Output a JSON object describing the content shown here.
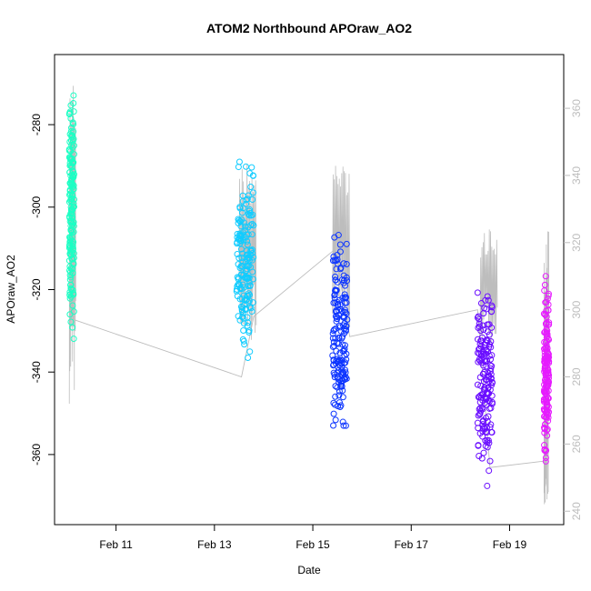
{
  "chart_data": {
    "type": "scatter",
    "title": "ATOM2 Northbound APOraw_AO2",
    "xlabel": "Date",
    "ylabel": "APOraw_AO2",
    "x_ticks": [
      {
        "x": 11,
        "label": "Feb 11"
      },
      {
        "x": 13,
        "label": "Feb 13"
      },
      {
        "x": 15,
        "label": "Feb 15"
      },
      {
        "x": 17,
        "label": "Feb 17"
      },
      {
        "x": 19,
        "label": "Feb 19"
      }
    ],
    "xlim": [
      9.75,
      20.1
    ],
    "ylim": [
      -377,
      -263
    ],
    "y_ticks": [
      -280,
      -300,
      -320,
      -340,
      -360
    ],
    "y2lim": [
      236,
      376
    ],
    "y2_ticks": [
      240,
      260,
      280,
      300,
      320,
      340,
      360
    ],
    "grid": false,
    "colors": {
      "points_gradient": [
        "#1bffc4",
        "#0cc6ff",
        "#0a3bff",
        "#6e0dff",
        "#e81bff"
      ],
      "secondary_line": "#bdbdbd",
      "secondary_axis": "#bdbdbd"
    },
    "clusters": [
      {
        "x_start": 10.05,
        "x_end": 10.15,
        "y_min": -338,
        "y_max": -266,
        "color": "#1bffc4"
      },
      {
        "x_start": 13.45,
        "x_end": 13.8,
        "y_min": -341,
        "y_max": -286,
        "color": "#11ccff"
      },
      {
        "x_start": 15.4,
        "x_end": 15.7,
        "y_min": -364,
        "y_max": -300,
        "color": "#0d35ff"
      },
      {
        "x_start": 18.35,
        "x_end": 18.65,
        "y_min": -372,
        "y_max": -311,
        "color": "#6a0dff"
      },
      {
        "x_start": 19.7,
        "x_end": 19.8,
        "y_min": -368,
        "y_max": -313,
        "color": "#e61bff"
      }
    ],
    "secondary_series": {
      "axis": "right",
      "bridge_points": [
        {
          "x": 10.15,
          "y": 297
        },
        {
          "x": 13.55,
          "y": 280
        },
        {
          "x": 13.8,
          "y": 298
        },
        {
          "x": 15.45,
          "y": 318
        },
        {
          "x": 15.75,
          "y": 292
        },
        {
          "x": 18.35,
          "y": 300
        },
        {
          "x": 18.6,
          "y": 253
        },
        {
          "x": 19.75,
          "y": 255
        }
      ],
      "segments": [
        {
          "x_start": 10.05,
          "x_end": 10.18,
          "y_low": 272,
          "y_high": 368
        },
        {
          "x_start": 13.5,
          "y_start": 280,
          "x_end": 13.85,
          "y_low": 290,
          "y_high": 344
        },
        {
          "x_start": 15.4,
          "x_end": 15.75,
          "y_low": 292,
          "y_high": 346
        },
        {
          "x_start": 18.4,
          "x_end": 18.75,
          "y_low": 290,
          "y_high": 324
        },
        {
          "x_start": 19.7,
          "x_end": 19.8,
          "y_low": 242,
          "y_high": 324
        }
      ]
    }
  }
}
